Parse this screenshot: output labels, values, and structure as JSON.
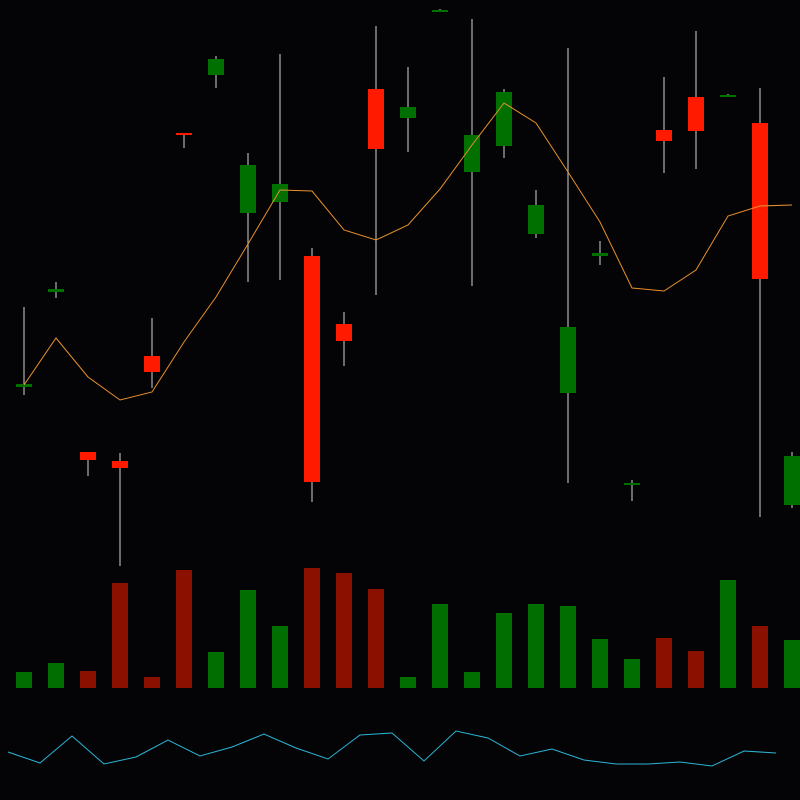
{
  "chart_data": {
    "type": "candlestick",
    "open": [
      173,
      268,
      108,
      99,
      204,
      427,
      485,
      347,
      358,
      304,
      236,
      471,
      442,
      550,
      388,
      414,
      326,
      167,
      304,
      75,
      430,
      463,
      465,
      437,
      55
    ],
    "high": [
      253,
      278,
      108,
      107,
      242,
      427,
      504,
      407,
      506,
      312,
      248,
      534,
      493,
      551,
      541,
      471,
      370,
      512,
      319,
      80,
      483,
      529,
      466,
      472,
      108
    ],
    "low": [
      165,
      262,
      84,
      -6,
      172,
      412,
      472,
      278,
      280,
      58,
      194,
      265,
      408,
      549,
      274,
      402,
      322,
      77,
      295,
      59,
      387,
      391,
      464,
      43,
      52
    ],
    "close": [
      176,
      271,
      100,
      92,
      188,
      425,
      501,
      395,
      376,
      78,
      219,
      411,
      453,
      550,
      425,
      468,
      355,
      233,
      307,
      77,
      419,
      429,
      465,
      281,
      104
    ],
    "ylim": [
      -10,
      560
    ],
    "up_color": "#007000",
    "down_color": "#ff1a00",
    "wick_color": "#b0b0b0",
    "moving_average": {
      "values": [
        175,
        222,
        183,
        160,
        168,
        218,
        263,
        316,
        370,
        369,
        330,
        320,
        335,
        371,
        415,
        457,
        437,
        388,
        338,
        272,
        269,
        290,
        344,
        354,
        355
      ],
      "color": "#e8902a"
    },
    "volume": {
      "values": [
        16,
        25,
        17,
        105,
        11,
        118,
        36,
        98,
        62,
        120,
        115,
        99,
        11,
        84,
        16,
        75,
        84,
        82,
        49,
        29,
        50,
        37,
        108,
        62,
        48
      ],
      "ylim": [
        0,
        125
      ],
      "up_color": "#006e00",
      "down_color": "#8b1000"
    },
    "indicator": {
      "values": [
        48,
        37,
        64,
        36,
        43,
        60,
        44,
        53,
        66,
        52,
        41,
        65,
        67,
        39,
        69,
        62,
        44,
        51,
        40,
        36,
        36,
        38,
        34,
        49,
        47
      ],
      "ylim": [
        0,
        100
      ],
      "color": "#2bb5d6"
    }
  }
}
